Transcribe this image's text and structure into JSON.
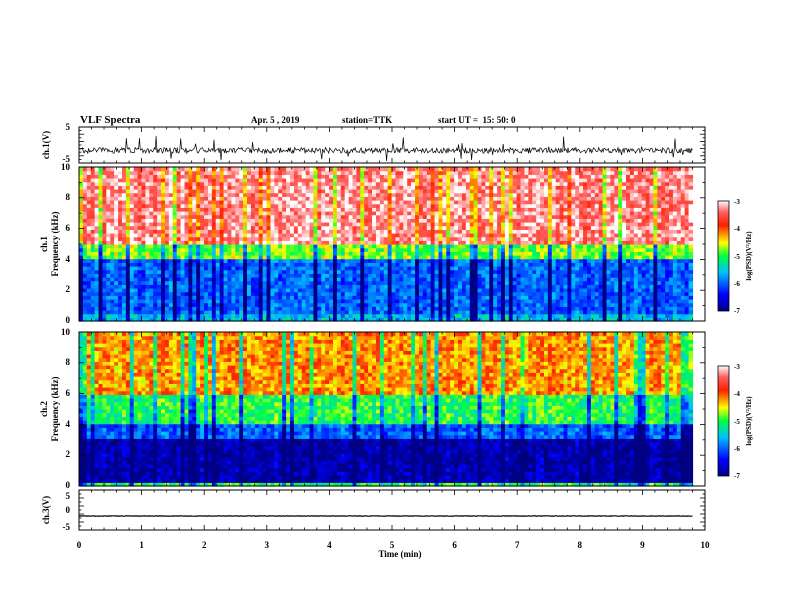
{
  "header": {
    "title": "VLF Spectra",
    "date": "Apr. 5 , 2019",
    "station": "station=TTK",
    "start": "start UT =  15: 50: 0"
  },
  "chart_data": [
    {
      "type": "line",
      "panel": "ch1-waveform",
      "ylabel": "ch.1(V)",
      "ylim": [
        -5,
        5
      ],
      "ytick_labels": [
        "5",
        "-5"
      ],
      "xlim": [
        0,
        10
      ],
      "x_end": 9.8,
      "baseline": -1.5,
      "spike_range": [
        -4.5,
        2.5
      ],
      "color": "#000000"
    },
    {
      "type": "heatmap",
      "panel": "ch1-spectrogram",
      "ylabel": "ch.1\nFrequency (kHz)",
      "ylabel_line1": "ch.1",
      "ylabel_line2": "Frequency (kHz)",
      "ylim": [
        0,
        10
      ],
      "ytick_labels": [
        "0",
        "2",
        "4",
        "6",
        "8",
        "10"
      ],
      "xlim": [
        0,
        10
      ],
      "x_end": 9.8,
      "log_psd_by_band": [
        {
          "f": [
            0,
            0.5
          ],
          "level": -5.6
        },
        {
          "f": [
            0.5,
            4
          ],
          "level": -6.0
        },
        {
          "f": [
            4,
            5
          ],
          "level": -4.8
        },
        {
          "f": [
            5,
            10
          ],
          "level": -3.3
        }
      ],
      "colorbar": {
        "label": "log(PSD)(V²/Hz)",
        "range": [
          -7,
          -3
        ],
        "tick_labels": [
          "-3",
          "-4",
          "-5",
          "-6",
          "-7"
        ]
      }
    },
    {
      "type": "heatmap",
      "panel": "ch2-spectrogram",
      "ylabel": "ch.2\nFrequency (kHz)",
      "ylabel_line1": "ch.2",
      "ylabel_line2": "Frequency (kHz)",
      "ylim": [
        0,
        10
      ],
      "ytick_labels": [
        "0",
        "2",
        "4",
        "6",
        "8",
        "10"
      ],
      "xlim": [
        0,
        10
      ],
      "x_end": 9.8,
      "log_psd_by_band": [
        {
          "f": [
            0,
            0.2
          ],
          "level": -5.0
        },
        {
          "f": [
            0.2,
            3
          ],
          "level": -6.8
        },
        {
          "f": [
            3,
            4
          ],
          "level": -6.0
        },
        {
          "f": [
            4,
            6
          ],
          "level": -5.0
        },
        {
          "f": [
            6,
            10
          ],
          "level": -4.2
        }
      ],
      "colorbar": {
        "label": "log(PSD)(V²/Hz)",
        "range": [
          -7,
          -3
        ],
        "tick_labels": [
          "-3",
          "-4",
          "-5",
          "-6",
          "-7"
        ]
      }
    },
    {
      "type": "line",
      "panel": "ch3-waveform",
      "ylabel": "ch.3(V)",
      "ylim": [
        -5,
        5
      ],
      "ytick_labels": [
        "5",
        "0",
        "-5"
      ],
      "xlim": [
        0,
        10
      ],
      "x_end": 9.8,
      "baseline": -1.5,
      "spike_range": [
        -1.6,
        -1.4
      ],
      "color": "#000000",
      "xlabel": "Time (min)",
      "xtick_labels": [
        "0",
        "1",
        "2",
        "3",
        "4",
        "5",
        "6",
        "7",
        "8",
        "9",
        "10"
      ]
    }
  ]
}
